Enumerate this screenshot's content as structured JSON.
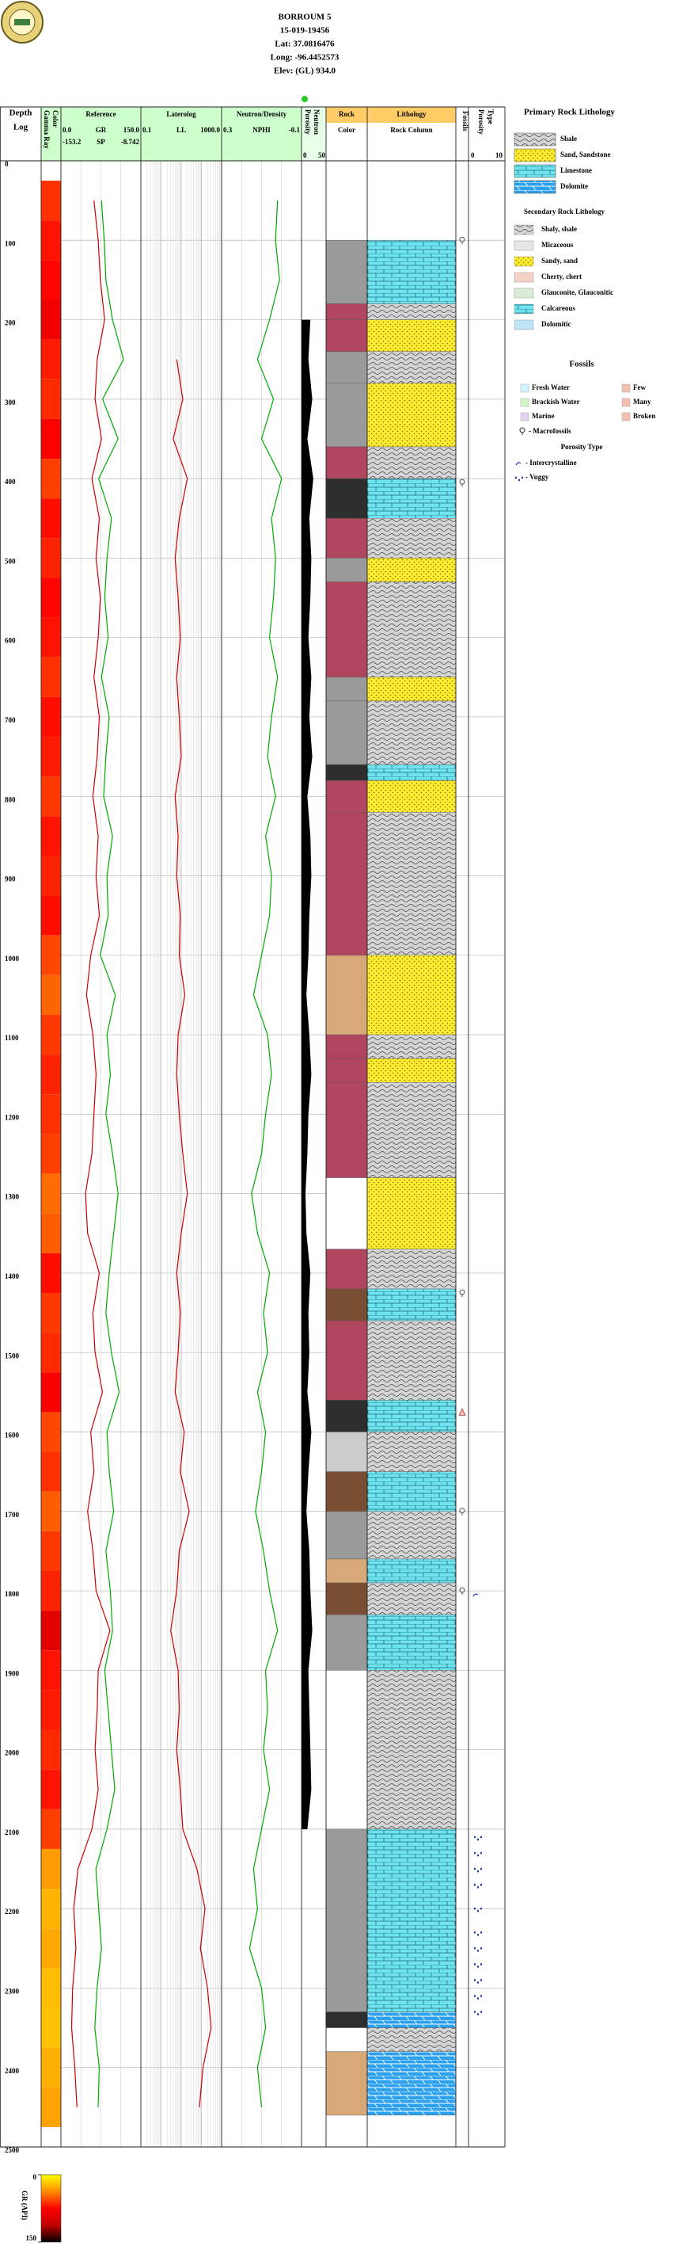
{
  "header": {
    "lines": [
      "BORROUM 5",
      "15-019-19456",
      "Lat: 37.0816476",
      "Long: -96.4452573",
      "Elev: (GL) 934.0"
    ]
  },
  "legend": {
    "primary_title": "Primary Rock Lithology",
    "primary": [
      "Shale",
      "Sand, Sandstone",
      "Limestone",
      "Dolomite"
    ],
    "secondary_title": "Secondary Rock Lithology",
    "secondary": [
      "Shaly, shale",
      "Micaceous",
      "Sandy, sand",
      "Cherty, chert",
      "Glauconite, Glauconitic",
      "Calcareous",
      "Dolomitic"
    ],
    "fossils_title": "Fossils",
    "fossils": [
      "Fresh Water",
      "Brackish Water",
      "Marine",
      "Few",
      "Many",
      "Broken",
      "- Macrofossils"
    ],
    "porosity_title": "Porosity Type",
    "porosity": [
      "- Intercrystalline",
      "- Vuggy"
    ]
  },
  "chart_data": {
    "type": "well-log",
    "depth_title": [
      "Depth",
      "Log"
    ],
    "ylim": [
      0,
      2500
    ],
    "yticks": [
      0,
      100,
      200,
      300,
      400,
      500,
      600,
      700,
      800,
      900,
      1000,
      1100,
      1200,
      1300,
      1400,
      1500,
      1600,
      1700,
      1800,
      1900,
      2000,
      2100,
      2200,
      2300,
      2400,
      2500
    ],
    "depths": [
      50,
      100,
      150,
      200,
      250,
      300,
      350,
      400,
      450,
      500,
      550,
      600,
      650,
      700,
      750,
      800,
      850,
      900,
      950,
      1000,
      1050,
      1100,
      1150,
      1200,
      1250,
      1300,
      1350,
      1400,
      1450,
      1500,
      1550,
      1600,
      1650,
      1700,
      1750,
      1800,
      1850,
      1900,
      1950,
      2000,
      2050,
      2100,
      2150,
      2200,
      2250,
      2300,
      2350,
      2400,
      2450
    ],
    "gamma_title": [
      "Gamma Ray",
      "Color"
    ],
    "colorbar": {
      "label": "GR (API)",
      "ticks": [
        0,
        150
      ],
      "colors": [
        "#ffff00",
        "#ff8c00",
        "#ff0000",
        "#c00000",
        "#000000"
      ]
    },
    "track_titles": [
      "Reference",
      "Laterolog",
      "Neutron/Density"
    ],
    "series": [
      {
        "name": "GR",
        "color": "#cc0000",
        "track": 0,
        "xlim": [
          0,
          150
        ],
        "xticks": [
          {
            "value": 0,
            "label": "0.0"
          },
          {
            "value": 150,
            "label": "150.0"
          }
        ],
        "values": [
          62,
          70,
          74,
          82,
          68,
          64,
          76,
          58,
          72,
          66,
          74,
          70,
          62,
          72,
          68,
          60,
          70,
          66,
          72,
          56,
          48,
          60,
          66,
          62,
          58,
          46,
          50,
          72,
          60,
          64,
          78,
          56,
          62,
          50,
          60,
          66,
          92,
          70,
          68,
          64,
          70,
          58,
          32,
          24,
          28,
          22,
          20,
          26,
          30
        ]
      },
      {
        "name": "SP",
        "color": "#00aa00",
        "track": 0,
        "xlim": [
          -153.2,
          -8.742
        ],
        "xticks": [
          -153.2,
          -8.742
        ],
        "values": [
          -80,
          -75,
          -72,
          -60,
          -40,
          -78,
          -50,
          -85,
          -62,
          -70,
          -74,
          -68,
          -80,
          -66,
          -72,
          -76,
          -60,
          -70,
          -68,
          -82,
          -55,
          -70,
          -64,
          -72,
          -60,
          -50,
          -58,
          -66,
          -72,
          -62,
          -48,
          -70,
          -66,
          -58,
          -72,
          -64,
          -60,
          -74,
          -68,
          -62,
          -56,
          -70,
          -90,
          -85,
          -80,
          -88,
          -92,
          -84,
          -86
        ]
      },
      {
        "name": "LL",
        "color": "#cc0000",
        "track": 1,
        "log": true,
        "xlim": [
          0.1,
          1000
        ],
        "xticks": [
          0.1,
          {
            "value": 1000,
            "label": "1000.0"
          }
        ],
        "values": [
          null,
          null,
          null,
          null,
          6,
          12,
          4,
          20,
          8,
          5,
          7,
          9,
          6,
          8,
          10,
          5,
          7,
          6,
          9,
          8,
          15,
          7,
          6,
          8,
          12,
          20,
          10,
          6,
          9,
          7,
          5,
          14,
          9,
          25,
          8,
          6,
          3,
          7,
          8,
          6,
          9,
          12,
          60,
          150,
          90,
          200,
          300,
          120,
          80
        ]
      },
      {
        "name": "NPHI",
        "color": "#00aa00",
        "track": 2,
        "xlim": [
          0.3,
          -0.1
        ],
        "xticks": [
          0.3,
          -0.1
        ],
        "values": [
          0.02,
          0.03,
          0.01,
          0.06,
          0.12,
          0.04,
          0.1,
          0.0,
          0.05,
          0.03,
          0.04,
          0.06,
          0.02,
          0.05,
          0.07,
          0.03,
          0.08,
          0.05,
          0.06,
          0.1,
          0.14,
          0.07,
          0.05,
          0.08,
          0.1,
          0.15,
          0.12,
          0.06,
          0.09,
          0.07,
          0.12,
          0.08,
          0.1,
          0.13,
          0.09,
          0.06,
          0.02,
          0.08,
          0.07,
          0.09,
          0.06,
          0.1,
          0.14,
          0.12,
          0.16,
          0.1,
          0.08,
          0.12,
          0.1
        ]
      }
    ],
    "porosity_neutron": {
      "title": [
        "Porosity",
        "Neutron"
      ],
      "xlim": [
        0,
        50
      ],
      "xticks": [
        0,
        50
      ],
      "color": "#000000",
      "values": [
        null,
        null,
        null,
        18,
        14,
        22,
        12,
        24,
        16,
        20,
        18,
        14,
        20,
        16,
        22,
        12,
        18,
        20,
        16,
        14,
        10,
        16,
        20,
        14,
        12,
        8,
        10,
        18,
        14,
        16,
        12,
        20,
        14,
        10,
        16,
        18,
        22,
        14,
        16,
        18,
        20,
        12,
        null,
        null,
        null,
        null,
        null,
        null,
        null
      ]
    },
    "rock_title": [
      "Rock",
      "Color"
    ],
    "lith_title": [
      "Lithology",
      "Rock Column"
    ],
    "intervals": {
      "top": [
        100,
        180,
        200,
        240,
        280,
        360,
        400,
        450,
        500,
        530,
        650,
        680,
        760,
        780,
        820,
        1000,
        1100,
        1130,
        1160,
        1280,
        1370,
        1420,
        1460,
        1560,
        1600,
        1650,
        1700,
        1760,
        1790,
        1830,
        1900,
        2100,
        2330,
        2350,
        2380
      ],
      "base": [
        180,
        200,
        240,
        280,
        360,
        400,
        450,
        500,
        530,
        650,
        680,
        760,
        780,
        820,
        1000,
        1100,
        1130,
        1160,
        1280,
        1370,
        1420,
        1460,
        1560,
        1600,
        1650,
        1700,
        1760,
        1790,
        1830,
        1900,
        2100,
        2330,
        2350,
        2380,
        2460
      ],
      "lith": [
        2,
        0,
        1,
        0,
        1,
        0,
        2,
        0,
        1,
        0,
        1,
        0,
        2,
        1,
        0,
        1,
        0,
        1,
        0,
        1,
        0,
        2,
        0,
        2,
        0,
        2,
        0,
        2,
        0,
        2,
        0,
        2,
        3,
        0,
        3
      ],
      "color": [
        "#9a9a9a",
        "#b0465e",
        "#b0465e",
        "#9a9a9a",
        "#9a9a9a",
        "#b0465e",
        "#2e2e2e",
        "#b0465e",
        "#9a9a9a",
        "#b0465e",
        "#9a9a9a",
        "#9a9a9a",
        "#2e2e2e",
        "#b0465e",
        "#b0465e",
        "#d8a878",
        "#b0465e",
        "#b0465e",
        "#b0465e",
        "#ffffff",
        "#b0465e",
        "#7a4e32",
        "#b0465e",
        "#2e2e2e",
        "#cccccc",
        "#7a4e32",
        "#9a9a9a",
        "#d8a878",
        "#7a4e32",
        "#9a9a9a",
        "#ffffff",
        "#9a9a9a",
        "#2e2e2e",
        "#ffffff",
        "#d8a878"
      ]
    },
    "fossils": {
      "title": "Fossils",
      "depths": [
        100,
        405,
        1425,
        1575,
        1700,
        1800
      ],
      "kinds": [
        6,
        6,
        6,
        3,
        6,
        6
      ]
    },
    "porosity_type": {
      "title": [
        "Porosity",
        "Type"
      ],
      "xticks": [
        0,
        10
      ],
      "depths": [
        1805,
        2110,
        2130,
        2150,
        2170,
        2200,
        2230,
        2250,
        2270,
        2290,
        2310,
        2330
      ],
      "kinds": [
        0,
        1,
        1,
        1,
        1,
        1,
        1,
        1,
        1,
        1,
        1,
        1
      ]
    }
  }
}
